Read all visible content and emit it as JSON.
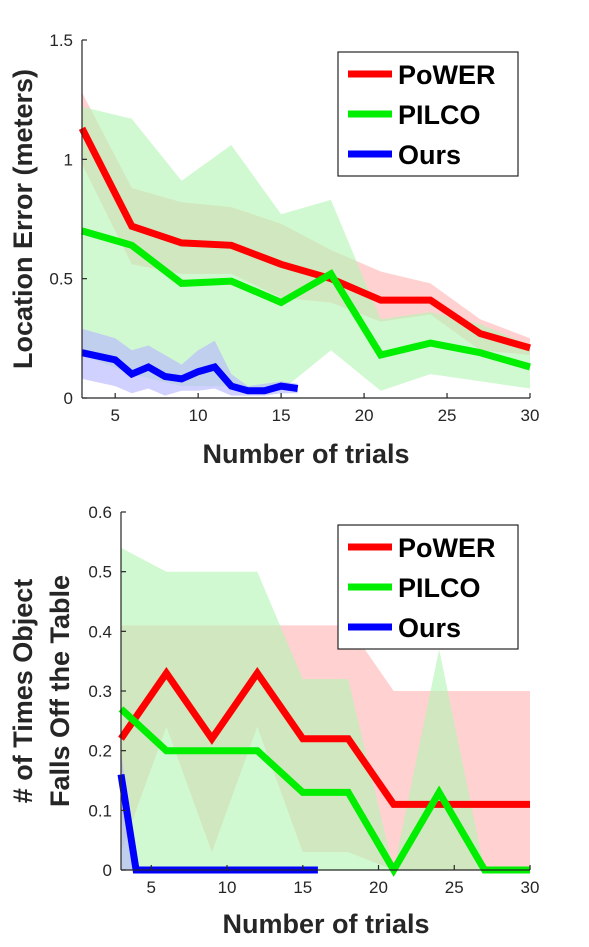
{
  "chart_data": [
    {
      "type": "line",
      "xlabel": "Number of trials",
      "ylabel": "Location Error (meters)",
      "xlim": [
        3,
        30
      ],
      "ylim": [
        0,
        1.5
      ],
      "xticks": [
        5,
        10,
        15,
        20,
        25,
        30
      ],
      "yticks": [
        0,
        0.5,
        1,
        1.5
      ],
      "xtick_labels": [
        "5",
        "10",
        "15",
        "20",
        "25",
        "30"
      ],
      "ytick_labels": [
        "0",
        "0.5",
        "1",
        "1.5"
      ],
      "legend_position": "top-right",
      "series": [
        {
          "name": "PoWER",
          "color": "#ff0000",
          "band_color": "#ffb3b3",
          "x": [
            3,
            6,
            9,
            12,
            15,
            18,
            21,
            24,
            27,
            30
          ],
          "y": [
            1.13,
            0.72,
            0.65,
            0.64,
            0.56,
            0.5,
            0.41,
            0.41,
            0.27,
            0.21
          ],
          "lower": [
            0.98,
            0.56,
            0.52,
            0.52,
            0.42,
            0.4,
            0.32,
            0.35,
            0.2,
            0.18
          ],
          "upper": [
            1.28,
            0.88,
            0.82,
            0.8,
            0.73,
            0.62,
            0.53,
            0.48,
            0.33,
            0.25
          ]
        },
        {
          "name": "PILCO",
          "color": "#00ee00",
          "band_color": "#b3f5b3",
          "x": [
            3,
            6,
            9,
            12,
            15,
            18,
            21,
            24,
            27,
            30
          ],
          "y": [
            0.7,
            0.64,
            0.48,
            0.49,
            0.4,
            0.52,
            0.18,
            0.23,
            0.19,
            0.13
          ],
          "lower": [
            0.18,
            0.1,
            0.05,
            0.05,
            0.03,
            0.2,
            0.03,
            0.1,
            0.07,
            0.04
          ],
          "upper": [
            1.22,
            1.17,
            0.91,
            1.06,
            0.77,
            0.83,
            0.33,
            0.36,
            0.31,
            0.22
          ]
        },
        {
          "name": "Ours",
          "color": "#0000ff",
          "band_color": "#b3b3ff",
          "x": [
            3,
            5,
            6,
            7,
            8,
            9,
            10,
            11,
            12,
            13,
            14,
            15,
            16
          ],
          "y": [
            0.19,
            0.16,
            0.1,
            0.13,
            0.09,
            0.08,
            0.11,
            0.13,
            0.05,
            0.03,
            0.03,
            0.05,
            0.04
          ],
          "lower": [
            0.08,
            0.05,
            0.02,
            0.04,
            0.01,
            0.03,
            0.03,
            0.04,
            0.01,
            0.01,
            0.01,
            0.02,
            0.02
          ],
          "upper": [
            0.29,
            0.25,
            0.2,
            0.22,
            0.18,
            0.14,
            0.2,
            0.24,
            0.1,
            0.05,
            0.06,
            0.07,
            0.06
          ]
        }
      ]
    },
    {
      "type": "line",
      "xlabel": "Number of trials",
      "ylabel": "# of Times Object\nFalls Off the Table",
      "ylabel_lines": [
        "# of Times Object",
        "Falls Off the Table"
      ],
      "xlim": [
        3,
        30
      ],
      "ylim": [
        0,
        0.6
      ],
      "xticks": [
        5,
        10,
        15,
        20,
        25,
        30
      ],
      "yticks": [
        0,
        0.1,
        0.2,
        0.3,
        0.4,
        0.5,
        0.6
      ],
      "xtick_labels": [
        "5",
        "10",
        "15",
        "20",
        "25",
        "30"
      ],
      "ytick_labels": [
        "0",
        "0.1",
        "0.2",
        "0.3",
        "0.4",
        "0.5",
        "0.6"
      ],
      "legend_position": "top-right",
      "series": [
        {
          "name": "PoWER",
          "color": "#ff0000",
          "band_color": "#ffb3b3",
          "x": [
            3,
            6,
            9,
            12,
            15,
            18,
            21,
            24,
            27,
            30
          ],
          "y": [
            0.22,
            0.33,
            0.22,
            0.33,
            0.22,
            0.22,
            0.11,
            0.11,
            0.11,
            0.11
          ],
          "lower": [
            0.03,
            0.24,
            0.03,
            0.24,
            0.03,
            0.03,
            0.0,
            0.0,
            0.0,
            0.0
          ],
          "upper": [
            0.41,
            0.41,
            0.41,
            0.41,
            0.41,
            0.41,
            0.3,
            0.3,
            0.3,
            0.3
          ]
        },
        {
          "name": "PILCO",
          "color": "#00ee00",
          "band_color": "#b3f5b3",
          "x": [
            3,
            6,
            9,
            12,
            15,
            18,
            21,
            24,
            27,
            30
          ],
          "y": [
            0.27,
            0.2,
            0.2,
            0.2,
            0.13,
            0.13,
            0.0,
            0.13,
            0.0,
            0.0
          ],
          "lower": [
            0.0,
            0.0,
            0.0,
            0.0,
            0.0,
            0.0,
            0.0,
            0.0,
            0.0,
            0.0
          ],
          "upper": [
            0.54,
            0.5,
            0.5,
            0.5,
            0.32,
            0.32,
            0.0,
            0.37,
            0.0,
            0.0
          ]
        },
        {
          "name": "Ours",
          "color": "#0000ff",
          "band_color": "#b3b3ff",
          "x": [
            3,
            4,
            5,
            16
          ],
          "y": [
            0.16,
            0.0,
            0.0,
            0.0
          ],
          "lower": [
            0.0,
            0.0,
            0.0,
            0.0
          ],
          "upper": [
            0.2,
            0.0,
            0.0,
            0.0
          ]
        }
      ]
    }
  ]
}
